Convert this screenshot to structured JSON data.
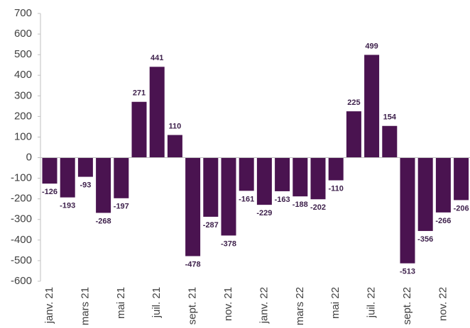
{
  "chart_data": {
    "type": "bar",
    "categories": [
      "janv. 21",
      null,
      "mars 21",
      null,
      "mai 21",
      null,
      "juil. 21",
      null,
      "sept. 21",
      null,
      "nov. 21",
      null,
      "janv. 22",
      null,
      "mars 22",
      null,
      "mai 22",
      null,
      "juil. 22",
      null,
      "sept. 22",
      null,
      "nov. 22",
      null
    ],
    "values": [
      -126,
      -193,
      -93,
      -268,
      -197,
      271,
      441,
      110,
      -478,
      -287,
      -378,
      -161,
      -229,
      -163,
      -188,
      -202,
      -110,
      225,
      499,
      154,
      -513,
      -356,
      -266,
      -206
    ],
    "color": "#4a1350",
    "ylim": [
      -600,
      700
    ],
    "yticks": [
      -600,
      -500,
      -400,
      -300,
      -200,
      -100,
      0,
      100,
      200,
      300,
      400,
      500,
      600,
      700
    ]
  }
}
